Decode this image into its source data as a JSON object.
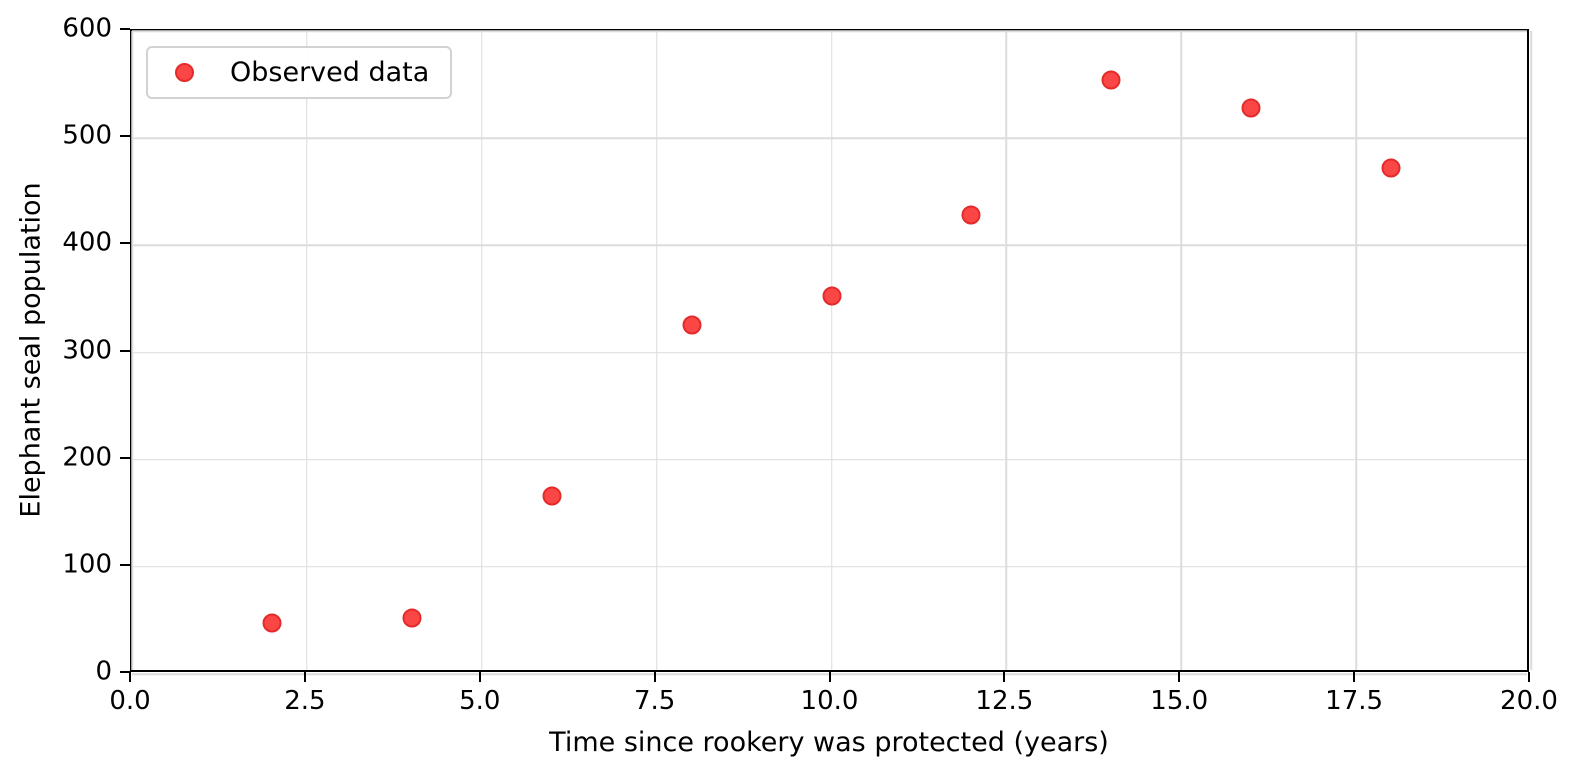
{
  "chart_data": {
    "type": "scatter",
    "title": "",
    "xlabel": "Time since rookery was protected (years)",
    "ylabel": "Elephant seal population",
    "xlim": [
      0,
      20
    ],
    "ylim": [
      0,
      600
    ],
    "xticks": [
      0,
      2.5,
      5,
      7.5,
      10,
      12.5,
      15,
      17.5,
      20
    ],
    "xtick_labels": [
      "0.0",
      "2.5",
      "5.0",
      "7.5",
      "10.0",
      "12.5",
      "15.0",
      "17.5",
      "20.0"
    ],
    "yticks": [
      0,
      100,
      200,
      300,
      400,
      500,
      600
    ],
    "ytick_labels": [
      "0",
      "100",
      "200",
      "300",
      "400",
      "500",
      "600"
    ],
    "grid": true,
    "legend": {
      "position": "upper-left",
      "entries": [
        {
          "label": "Observed data",
          "marker": "circle",
          "fill": "#fb4646",
          "edge": "#e32b2b"
        }
      ]
    },
    "series": [
      {
        "name": "Observed data",
        "marker": "circle",
        "fill": "#fb4646",
        "edge": "#e32b2b",
        "x": [
          2,
          4,
          6,
          8,
          10,
          12,
          14,
          16,
          18
        ],
        "y": [
          48,
          52,
          166,
          326,
          353,
          428,
          554,
          528,
          472
        ]
      }
    ]
  },
  "colors": {
    "background": "#ffffff",
    "spine": "#000000",
    "grid": "#dcdcdc",
    "tick": "#000000",
    "text": "#000000",
    "legend_border": "#d2d2d2",
    "marker_fill": "#fb4646",
    "marker_edge": "#e32b2b"
  }
}
